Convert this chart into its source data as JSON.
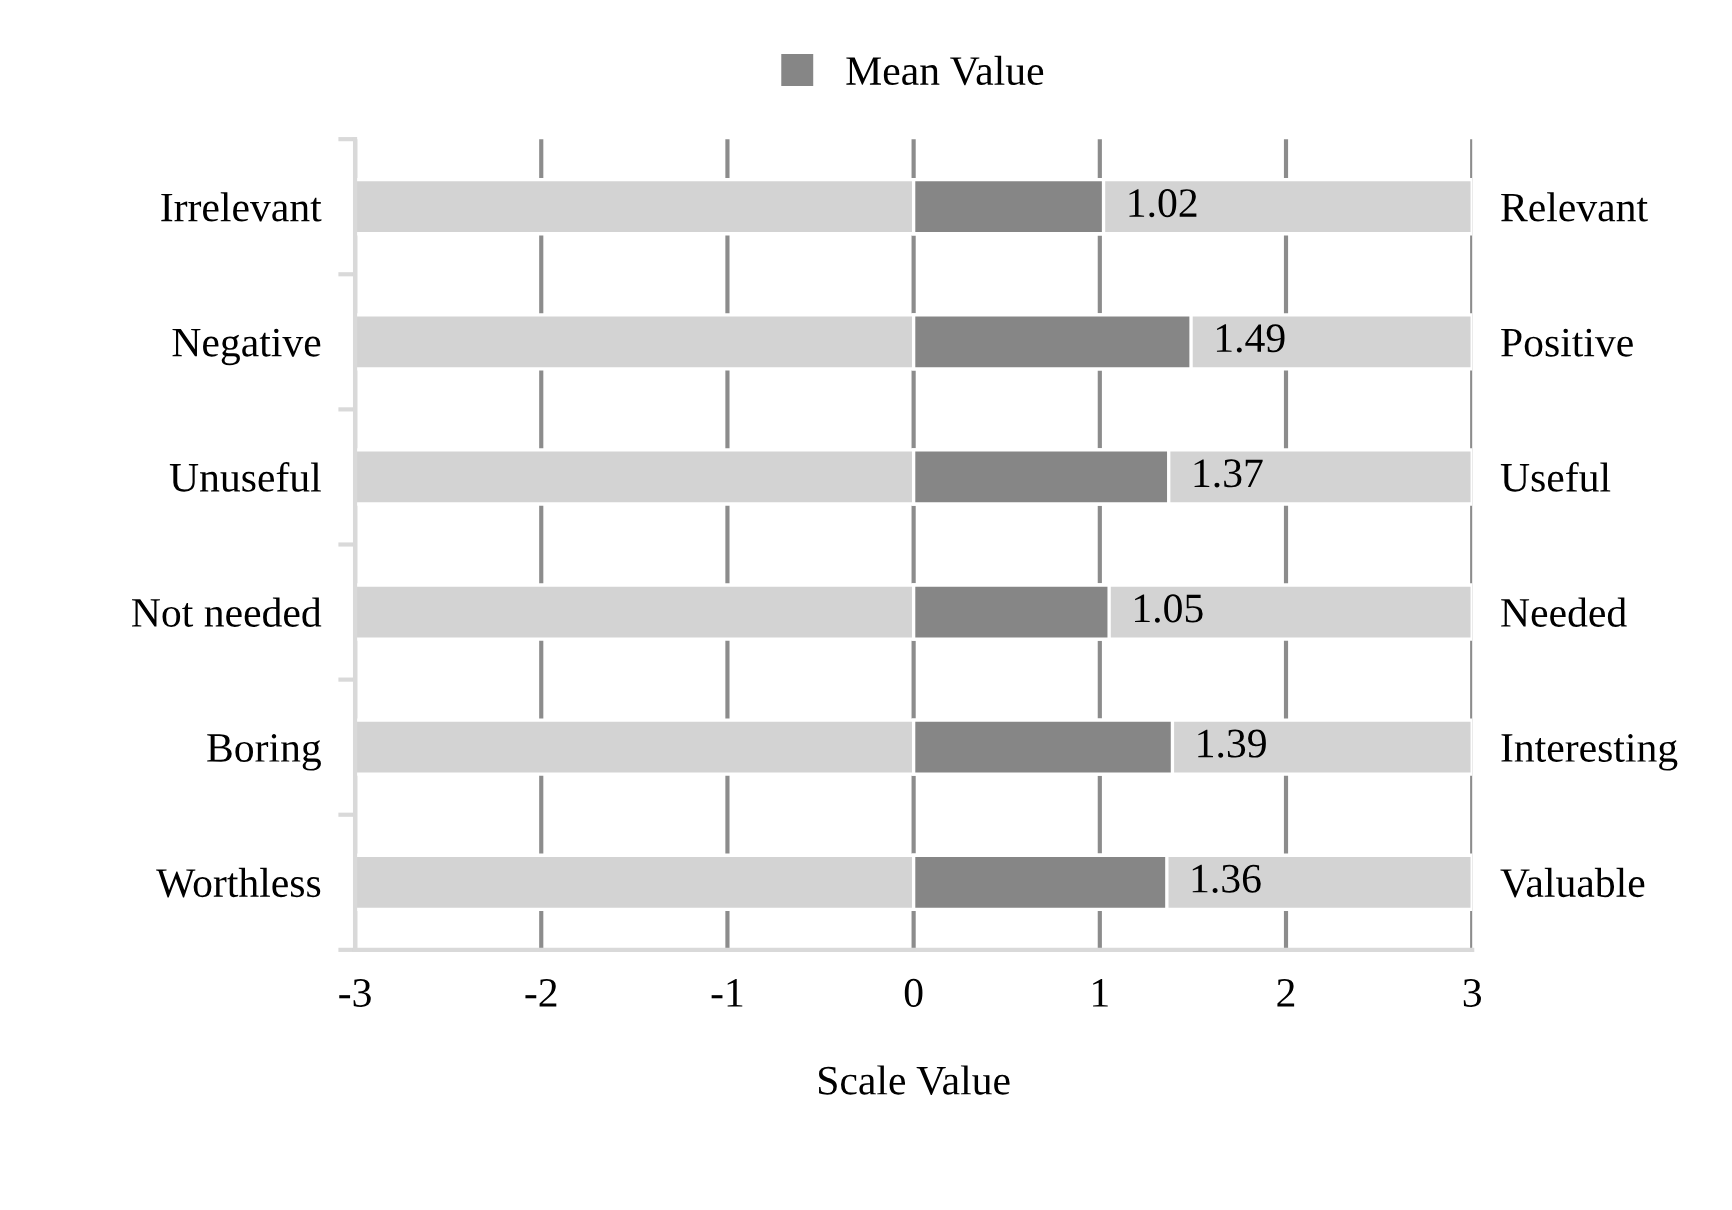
{
  "chart_data": {
    "type": "bar",
    "orientation": "horizontal",
    "xlabel": "Scale Value",
    "categories": [
      "Irrelevant",
      "Negative",
      "Unuseful",
      "Not needed",
      "Boring",
      "Worthless"
    ],
    "y2_categories": [
      "Relevant",
      "Positive",
      "Useful",
      "Needed",
      "Interesting",
      "Valuable"
    ],
    "series": [
      {
        "color": "#d3d3d3",
        "base": [
          -3,
          -3,
          -3,
          -3,
          -3,
          -3
        ],
        "values": [
          6,
          6,
          6,
          6,
          6,
          6
        ]
      },
      {
        "name": "Mean Value",
        "color": "#868686",
        "values": [
          1.02,
          1.49,
          1.37,
          1.05,
          1.39,
          1.36
        ],
        "value_labels": [
          "1.02",
          "1.49",
          "1.37",
          "1.05",
          "1.39",
          "1.36"
        ]
      }
    ],
    "xlim": [
      -3,
      3
    ],
    "xticks": [
      -3,
      -2,
      -1,
      0,
      1,
      2,
      3
    ],
    "grid": "x",
    "legend": "top"
  }
}
